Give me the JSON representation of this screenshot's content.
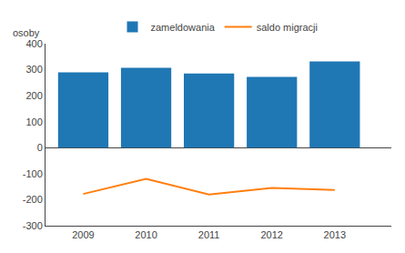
{
  "chart_data": {
    "type": "bar",
    "x": [
      2009,
      2010,
      2011,
      2012,
      2013
    ],
    "series": [
      {
        "name": "zameldowania",
        "type": "bar",
        "values": [
          290,
          307,
          285,
          272,
          332
        ]
      },
      {
        "name": "saldo migracji",
        "type": "line",
        "values": [
          -178,
          -120,
          -180,
          -155,
          -163
        ]
      }
    ],
    "y_label": "osoby",
    "xlim": [
      2008.4,
      2013.9
    ],
    "xticks": [
      2009,
      2010,
      2011,
      2012,
      2013
    ],
    "ylim": [
      -300,
      400
    ],
    "yticks": [
      -300,
      -200,
      -100,
      0,
      100,
      200,
      300,
      400
    ],
    "grid": false,
    "legend": "top"
  }
}
